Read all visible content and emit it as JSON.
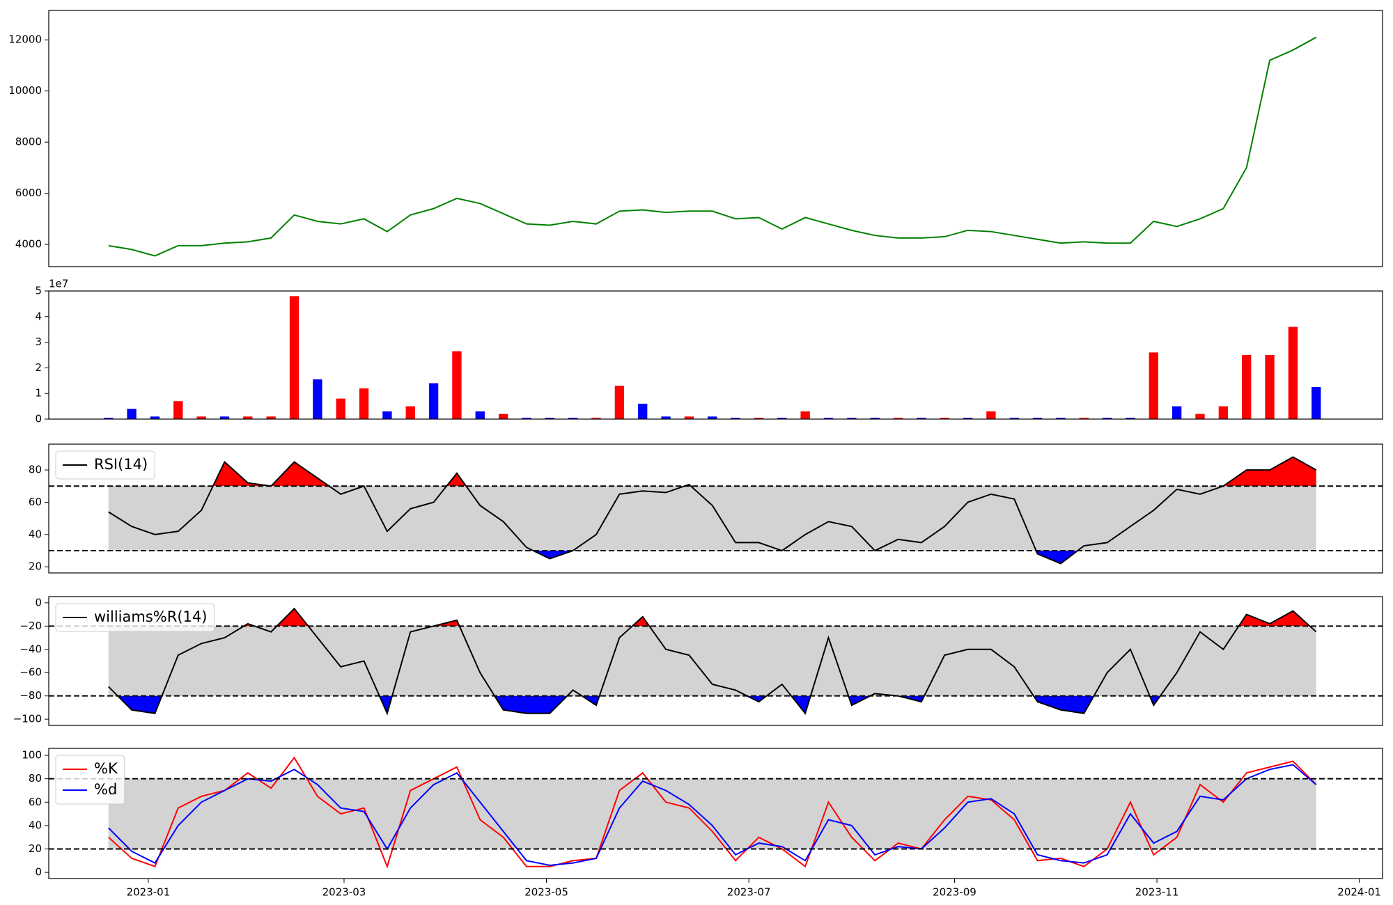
{
  "chart_data": [
    {
      "type": "line",
      "color": "#008000",
      "x": [
        19346,
        19353,
        19360,
        19367,
        19374,
        19381,
        19388,
        19395,
        19402,
        19409,
        19416,
        19423,
        19430,
        19437,
        19444,
        19451,
        19458,
        19465,
        19472,
        19479,
        19486,
        19493,
        19500,
        19507,
        19514,
        19521,
        19528,
        19535,
        19542,
        19549,
        19556,
        19563,
        19570,
        19577,
        19584,
        19591,
        19598,
        19605,
        19612,
        19619,
        19626,
        19633,
        19640,
        19647,
        19654,
        19661,
        19668,
        19675,
        19682,
        19689,
        19696,
        19703,
        19710
      ],
      "values": [
        3950,
        3800,
        3550,
        3950,
        3950,
        4050,
        4100,
        4250,
        5150,
        4900,
        4800,
        5000,
        4500,
        5150,
        5400,
        5800,
        5600,
        5200,
        4800,
        4750,
        4900,
        4800,
        5300,
        5350,
        5250,
        5300,
        5300,
        5000,
        5050,
        4600,
        5050,
        4800,
        4550,
        4350,
        4250,
        4250,
        4300,
        4550,
        4500,
        4350,
        4200,
        4050,
        4100,
        4050,
        4050,
        4900,
        4700,
        5000,
        5400,
        7000,
        11200,
        11600,
        12100
      ],
      "xlim": [
        19328,
        19730
      ],
      "ylim": [
        3130,
        13150
      ],
      "yticks": [
        4000,
        6000,
        8000,
        10000,
        12000
      ]
    },
    {
      "type": "bar",
      "offset_label": "1e7",
      "x": [
        19346,
        19353,
        19360,
        19367,
        19374,
        19381,
        19388,
        19395,
        19402,
        19409,
        19416,
        19423,
        19430,
        19437,
        19444,
        19451,
        19458,
        19465,
        19472,
        19479,
        19486,
        19493,
        19500,
        19507,
        19514,
        19521,
        19528,
        19535,
        19542,
        19549,
        19556,
        19563,
        19570,
        19577,
        19584,
        19591,
        19598,
        19605,
        19612,
        19619,
        19626,
        19633,
        19640,
        19647,
        19654,
        19661,
        19668,
        19675,
        19682,
        19689,
        19696,
        19703,
        19710
      ],
      "values": [
        0.05,
        0.4,
        0.1,
        0.7,
        0.1,
        0.1,
        0.1,
        0.1,
        4.8,
        1.55,
        0.8,
        1.2,
        0.3,
        0.5,
        1.4,
        2.65,
        0.3,
        0.2,
        0.05,
        0.05,
        0.05,
        0.05,
        1.3,
        0.6,
        0.1,
        0.1,
        0.1,
        0.05,
        0.05,
        0.05,
        0.3,
        0.05,
        0.05,
        0.05,
        0.05,
        0.05,
        0.05,
        0.05,
        0.3,
        0.05,
        0.05,
        0.05,
        0.05,
        0.05,
        0.05,
        2.6,
        0.5,
        0.2,
        0.5,
        2.5,
        2.5,
        3.6,
        1.25
      ],
      "colors": [
        "#0000ff",
        "#0000ff",
        "#0000ff",
        "#ff0000",
        "#ff0000",
        "#0000ff",
        "#ff0000",
        "#ff0000",
        "#ff0000",
        "#0000ff",
        "#ff0000",
        "#ff0000",
        "#0000ff",
        "#ff0000",
        "#0000ff",
        "#ff0000",
        "#0000ff",
        "#ff0000",
        "#0000ff",
        "#0000ff",
        "#0000ff",
        "#ff0000",
        "#ff0000",
        "#0000ff",
        "#0000ff",
        "#ff0000",
        "#0000ff",
        "#0000ff",
        "#ff0000",
        "#0000ff",
        "#ff0000",
        "#0000ff",
        "#0000ff",
        "#0000ff",
        "#ff0000",
        "#0000ff",
        "#ff0000",
        "#0000ff",
        "#ff0000",
        "#0000ff",
        "#0000ff",
        "#0000ff",
        "#ff0000",
        "#0000ff",
        "#0000ff",
        "#ff0000",
        "#0000ff",
        "#ff0000",
        "#ff0000",
        "#ff0000",
        "#ff0000",
        "#ff0000",
        "#0000ff"
      ],
      "xlim": [
        19328,
        19730
      ],
      "ylim": [
        0,
        5
      ],
      "yticks": [
        0,
        1,
        2,
        3,
        4,
        5
      ]
    },
    {
      "type": "line",
      "legend": "upper left",
      "hlines": [
        70,
        30
      ],
      "upper_fill": "#ff0000",
      "lower_fill": "#0000ff",
      "band_color": "#d3d3d3",
      "x": [
        19346,
        19353,
        19360,
        19367,
        19374,
        19381,
        19388,
        19395,
        19402,
        19409,
        19416,
        19423,
        19430,
        19437,
        19444,
        19451,
        19458,
        19465,
        19472,
        19479,
        19486,
        19493,
        19500,
        19507,
        19514,
        19521,
        19528,
        19535,
        19542,
        19549,
        19556,
        19563,
        19570,
        19577,
        19584,
        19591,
        19598,
        19605,
        19612,
        19619,
        19626,
        19633,
        19640,
        19647,
        19654,
        19661,
        19668,
        19675,
        19682,
        19689,
        19696,
        19703,
        19710
      ],
      "series": [
        {
          "name": "RSI(14)",
          "color": "#000000",
          "values": [
            54,
            45,
            40,
            42,
            55,
            85,
            72,
            70,
            85,
            75,
            65,
            70,
            42,
            56,
            60,
            78,
            58,
            48,
            32,
            25,
            30,
            40,
            65,
            67,
            66,
            71,
            58,
            35,
            35,
            30,
            40,
            48,
            45,
            30,
            37,
            35,
            45,
            60,
            65,
            62,
            28,
            22,
            33,
            35,
            45,
            55,
            68,
            65,
            70,
            80,
            80,
            88,
            80
          ]
        }
      ],
      "xlim": [
        19328,
        19730
      ],
      "ylim": [
        16.2,
        96
      ],
      "yticks": [
        20,
        40,
        60,
        80
      ]
    },
    {
      "type": "line",
      "legend": "upper left",
      "hlines": [
        -20,
        -80
      ],
      "upper_fill": "#ff0000",
      "lower_fill": "#0000ff",
      "band_color": "#d3d3d3",
      "x": [
        19346,
        19353,
        19360,
        19367,
        19374,
        19381,
        19388,
        19395,
        19402,
        19409,
        19416,
        19423,
        19430,
        19437,
        19444,
        19451,
        19458,
        19465,
        19472,
        19479,
        19486,
        19493,
        19500,
        19507,
        19514,
        19521,
        19528,
        19535,
        19542,
        19549,
        19556,
        19563,
        19570,
        19577,
        19584,
        19591,
        19598,
        19605,
        19612,
        19619,
        19626,
        19633,
        19640,
        19647,
        19654,
        19661,
        19668,
        19675,
        19682,
        19689,
        19696,
        19703,
        19710
      ],
      "series": [
        {
          "name": "williams%R(14)",
          "color": "#000000",
          "values": [
            -72,
            -92,
            -95,
            -45,
            -35,
            -30,
            -18,
            -25,
            -5,
            -30,
            -55,
            -50,
            -95,
            -25,
            -20,
            -15,
            -60,
            -92,
            -95,
            -95,
            -75,
            -88,
            -30,
            -12,
            -40,
            -45,
            -70,
            -75,
            -85,
            -70,
            -95,
            -30,
            -88,
            -78,
            -80,
            -85,
            -45,
            -40,
            -40,
            -55,
            -85,
            -92,
            -95,
            -60,
            -40,
            -88,
            -60,
            -25,
            -40,
            -10,
            -18,
            -7,
            -25
          ]
        }
      ],
      "xlim": [
        19328,
        19730
      ],
      "ylim": [
        -105.3,
        5.3
      ],
      "yticks": [
        {
          "value": -100,
          "label": "−100"
        },
        {
          "value": -80,
          "label": "−80"
        },
        {
          "value": -60,
          "label": "−60"
        },
        {
          "value": -40,
          "label": "−40"
        },
        {
          "value": -20,
          "label": "−20"
        },
        0
      ]
    },
    {
      "type": "line",
      "legend": "upper left",
      "hlines": [
        80,
        20
      ],
      "band_color": "#d3d3d3",
      "x": [
        19346,
        19353,
        19360,
        19367,
        19374,
        19381,
        19388,
        19395,
        19402,
        19409,
        19416,
        19423,
        19430,
        19437,
        19444,
        19451,
        19458,
        19465,
        19472,
        19479,
        19486,
        19493,
        19500,
        19507,
        19514,
        19521,
        19528,
        19535,
        19542,
        19549,
        19556,
        19563,
        19570,
        19577,
        19584,
        19591,
        19598,
        19605,
        19612,
        19619,
        19626,
        19633,
        19640,
        19647,
        19654,
        19661,
        19668,
        19675,
        19682,
        19689,
        19696,
        19703,
        19710
      ],
      "series": [
        {
          "name": "%K",
          "color": "#ff0000",
          "values": [
            30,
            12,
            5,
            55,
            65,
            70,
            85,
            72,
            98,
            65,
            50,
            55,
            5,
            70,
            80,
            90,
            45,
            30,
            5,
            5,
            10,
            12,
            70,
            85,
            60,
            55,
            35,
            10,
            30,
            20,
            5,
            60,
            30,
            10,
            25,
            20,
            45,
            65,
            62,
            45,
            10,
            12,
            5,
            20,
            60,
            15,
            30,
            75,
            60,
            85,
            90,
            95,
            75
          ]
        },
        {
          "name": "%d",
          "color": "#0000ff",
          "values": [
            38,
            18,
            8,
            40,
            60,
            70,
            80,
            78,
            88,
            75,
            55,
            52,
            20,
            55,
            75,
            85,
            60,
            35,
            10,
            6,
            8,
            12,
            55,
            78,
            70,
            58,
            40,
            15,
            25,
            22,
            10,
            45,
            40,
            15,
            22,
            20,
            38,
            60,
            63,
            50,
            15,
            10,
            8,
            15,
            50,
            25,
            35,
            65,
            62,
            80,
            88,
            92,
            75
          ]
        }
      ],
      "xlim": [
        19328,
        19730
      ],
      "ylim": [
        -5.3,
        106
      ],
      "yticks": [
        0,
        20,
        40,
        60,
        80,
        100
      ],
      "xticks": [
        {
          "value": 19358,
          "label": "2023-01"
        },
        {
          "value": 19417,
          "label": "2023-03"
        },
        {
          "value": 19478,
          "label": "2023-05"
        },
        {
          "value": 19539,
          "label": "2023-07"
        },
        {
          "value": 19601,
          "label": "2023-09"
        },
        {
          "value": 19662,
          "label": "2023-11"
        },
        {
          "value": 19723,
          "label": "2024-01"
        }
      ]
    }
  ]
}
